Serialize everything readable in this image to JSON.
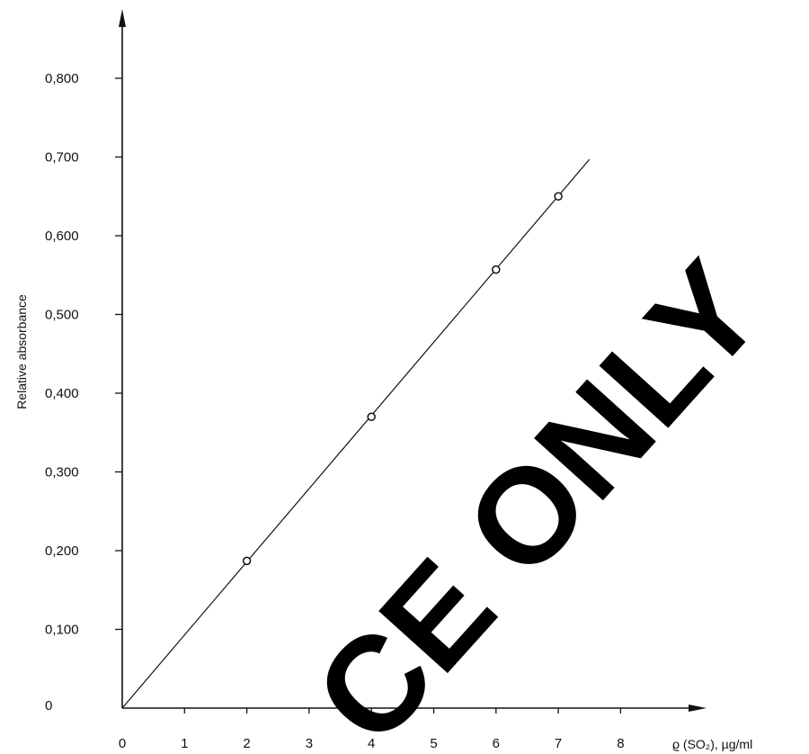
{
  "chart_data": {
    "type": "scatter",
    "title": "",
    "xlabel": "ϱ (SO₂), µg/ml",
    "ylabel": "Relative absorbance",
    "xlim": [
      0,
      8
    ],
    "ylim": [
      0,
      0.8
    ],
    "x_ticks": [
      0,
      1,
      2,
      3,
      4,
      5,
      6,
      7,
      8
    ],
    "x_tick_labels": [
      "0",
      "1",
      "2",
      "3",
      "4",
      "5",
      "6",
      "7",
      "8"
    ],
    "y_ticks": [
      0,
      0.1,
      0.2,
      0.3,
      0.4,
      0.5,
      0.6,
      0.7,
      0.8
    ],
    "y_tick_labels": [
      "0",
      "0,100",
      "0,200",
      "0,300",
      "0,400",
      "0,500",
      "0,600",
      "0,700",
      "0,800"
    ],
    "grid": false,
    "series": [
      {
        "points": [
          {
            "x": 2,
            "y": 0.187
          },
          {
            "x": 4,
            "y": 0.37
          },
          {
            "x": 6,
            "y": 0.557
          },
          {
            "x": 7,
            "y": 0.65
          }
        ]
      }
    ],
    "fit_line": {
      "x_start": 0,
      "y_start": 0,
      "x_end": 7.5,
      "y_end": 0.697
    }
  },
  "watermark": {
    "text": "CE ONLY",
    "color": "#000000"
  }
}
